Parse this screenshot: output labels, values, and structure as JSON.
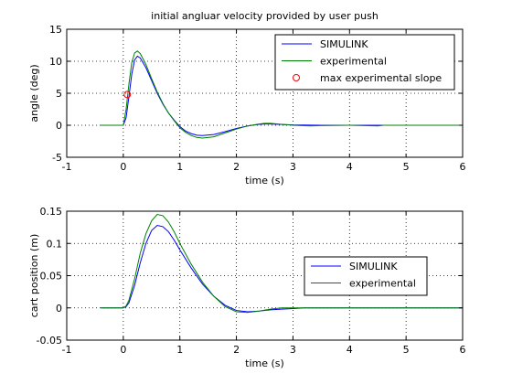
{
  "chart_data": [
    {
      "type": "line",
      "title": "initial angluar velocity provided by user push",
      "xlabel": "time (s)",
      "ylabel": "angle (deg)",
      "xlim": [
        -1,
        6
      ],
      "ylim": [
        -5,
        15
      ],
      "xticks": [
        -1,
        0,
        1,
        2,
        3,
        4,
        5,
        6
      ],
      "yticks": [
        -5,
        0,
        5,
        10,
        15
      ],
      "grid": true,
      "legend_position": "top-right",
      "series": [
        {
          "name": "SIMULINK",
          "color": "#0000ff",
          "x": [
            -0.4,
            0.0,
            0.05,
            0.1,
            0.15,
            0.2,
            0.25,
            0.3,
            0.4,
            0.5,
            0.6,
            0.7,
            0.8,
            0.9,
            1.0,
            1.1,
            1.2,
            1.3,
            1.4,
            1.6,
            1.8,
            2.0,
            2.2,
            2.4,
            2.5,
            2.6,
            2.8,
            3.0,
            3.5,
            4.0,
            4.5,
            5.0,
            6.0
          ],
          "y": [
            0.0,
            0.0,
            1.2,
            4.5,
            8.0,
            10.2,
            10.8,
            10.5,
            9.0,
            7.0,
            5.0,
            3.3,
            1.9,
            0.8,
            -0.2,
            -0.9,
            -1.3,
            -1.55,
            -1.6,
            -1.45,
            -1.0,
            -0.5,
            -0.1,
            0.15,
            0.2,
            0.2,
            0.12,
            0.05,
            0.0,
            0.0,
            0.0,
            0.0,
            0.0
          ]
        },
        {
          "name": "experimental",
          "color": "#008000",
          "x": [
            -0.4,
            0.0,
            0.05,
            0.1,
            0.15,
            0.2,
            0.25,
            0.3,
            0.4,
            0.5,
            0.6,
            0.7,
            0.8,
            0.9,
            1.0,
            1.1,
            1.2,
            1.3,
            1.4,
            1.6,
            1.8,
            2.0,
            2.2,
            2.4,
            2.5,
            2.6,
            2.8,
            3.0,
            3.3,
            3.5,
            4.0,
            4.5,
            4.6,
            5.0,
            6.0
          ],
          "y": [
            0.0,
            0.0,
            2.5,
            6.5,
            9.8,
            11.3,
            11.6,
            11.2,
            9.5,
            7.3,
            5.2,
            3.4,
            1.9,
            0.7,
            -0.4,
            -1.1,
            -1.6,
            -1.9,
            -2.0,
            -1.8,
            -1.2,
            -0.6,
            -0.1,
            0.2,
            0.3,
            0.3,
            0.15,
            0.0,
            -0.1,
            -0.05,
            0.0,
            -0.1,
            0.0,
            0.0,
            0.0
          ]
        }
      ],
      "markers": [
        {
          "name": "max experimental slope",
          "color": "#ff0000",
          "symbol": "circle",
          "x": [
            0.07
          ],
          "y": [
            4.8
          ]
        }
      ]
    },
    {
      "type": "line",
      "title": "",
      "xlabel": "time (s)",
      "ylabel": "cart position (m)",
      "xlim": [
        -1,
        6
      ],
      "ylim": [
        -0.05,
        0.15
      ],
      "xticks": [
        -1,
        0,
        1,
        2,
        3,
        4,
        5,
        6
      ],
      "yticks": [
        -0.05,
        0,
        0.05,
        0.1,
        0.15
      ],
      "ytick_labels": [
        "-0.05",
        "0",
        "0.05",
        "0.1",
        "0.15"
      ],
      "grid": true,
      "legend_position": "right",
      "series": [
        {
          "name": "SIMULINK",
          "color": "#0000ff",
          "x": [
            -0.4,
            0.0,
            0.05,
            0.1,
            0.2,
            0.3,
            0.4,
            0.5,
            0.6,
            0.7,
            0.8,
            0.9,
            1.0,
            1.2,
            1.4,
            1.6,
            1.8,
            2.0,
            2.2,
            2.4,
            2.6,
            2.8,
            3.0,
            3.2,
            3.4,
            4.0,
            6.0
          ],
          "y": [
            0.0,
            0.0,
            0.002,
            0.008,
            0.035,
            0.07,
            0.1,
            0.12,
            0.128,
            0.126,
            0.118,
            0.105,
            0.09,
            0.062,
            0.037,
            0.018,
            0.004,
            -0.004,
            -0.006,
            -0.005,
            -0.003,
            -0.002,
            -0.001,
            0.0,
            0.0,
            0.0,
            0.0
          ]
        },
        {
          "name": "experimental",
          "color": "#008000",
          "x": [
            -0.4,
            0.0,
            0.05,
            0.1,
            0.2,
            0.3,
            0.4,
            0.5,
            0.6,
            0.7,
            0.8,
            0.9,
            1.0,
            1.2,
            1.4,
            1.6,
            1.8,
            2.0,
            2.2,
            2.4,
            2.6,
            2.8,
            3.0,
            3.2,
            3.4,
            4.0,
            6.0
          ],
          "y": [
            0.0,
            0.0,
            0.003,
            0.012,
            0.045,
            0.085,
            0.115,
            0.135,
            0.145,
            0.143,
            0.133,
            0.118,
            0.1,
            0.068,
            0.04,
            0.018,
            0.002,
            -0.006,
            -0.007,
            -0.005,
            -0.002,
            0.0,
            0.0,
            0.0,
            0.0,
            0.0,
            0.0
          ]
        }
      ]
    }
  ]
}
